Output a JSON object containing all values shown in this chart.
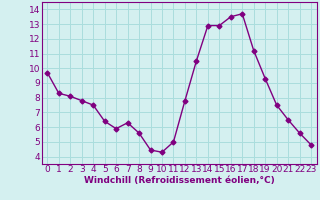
{
  "hours": [
    0,
    1,
    2,
    3,
    4,
    5,
    6,
    7,
    8,
    9,
    10,
    11,
    12,
    13,
    14,
    15,
    16,
    17,
    18,
    19,
    20,
    21,
    22,
    23
  ],
  "values": [
    9.7,
    8.3,
    8.1,
    7.8,
    7.5,
    6.4,
    5.9,
    6.3,
    5.6,
    4.45,
    4.3,
    5.0,
    7.8,
    10.5,
    12.9,
    12.9,
    13.5,
    13.7,
    11.2,
    9.3,
    7.5,
    6.5,
    5.6,
    4.8
  ],
  "line_color": "#800080",
  "marker": "D",
  "marker_size": 2.5,
  "bg_color": "#d4f0f0",
  "grid_color": "#aadddd",
  "ylim": [
    3.5,
    14.5
  ],
  "xlim": [
    -0.5,
    23.5
  ],
  "yticks": [
    4,
    5,
    6,
    7,
    8,
    9,
    10,
    11,
    12,
    13,
    14
  ],
  "xlabel": "Windchill (Refroidissement éolien,°C)",
  "xlabel_fontsize": 6.5,
  "tick_fontsize": 6.5,
  "line_width": 1.0
}
